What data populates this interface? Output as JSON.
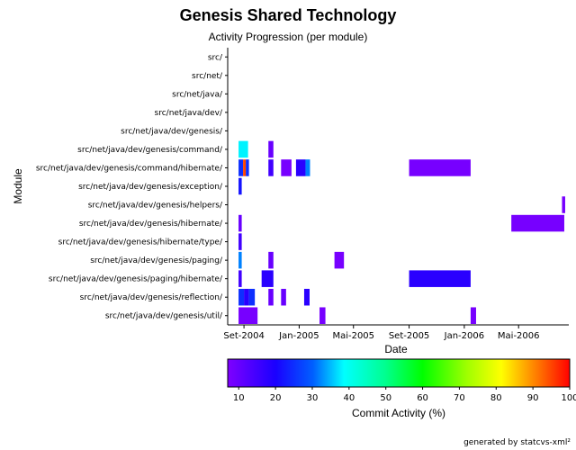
{
  "chart_data": {
    "type": "heatmap",
    "title": "Genesis Shared Technology",
    "subtitle": "Activity Progression (per module)",
    "xlabel": "Date",
    "ylabel": "Module",
    "x_ticks": [
      "Set-2004",
      "Jan-2005",
      "Mai-2005",
      "Set-2005",
      "Jan-2006",
      "Mai-2006"
    ],
    "x_range": [
      "2004-07-27",
      "2006-08-20"
    ],
    "modules": [
      "src/",
      "src/net/",
      "src/net/java/",
      "src/net/java/dev/",
      "src/net/java/dev/genesis/",
      "src/net/java/dev/genesis/command/",
      "src/net/java/dev/genesis/command/hibernate/",
      "src/net/java/dev/genesis/exception/",
      "src/net/java/dev/genesis/helpers/",
      "src/net/java/dev/genesis/hibernate/",
      "src/net/java/dev/genesis/hibernate/type/",
      "src/net/java/dev/genesis/paging/",
      "src/net/java/dev/genesis/paging/hibernate/",
      "src/net/java/dev/genesis/reflection/",
      "src/net/java/dev/genesis/util/"
    ],
    "cells": [
      {
        "module": 5,
        "start": "2004-08-20",
        "end": "2004-09-10",
        "activity": 38
      },
      {
        "module": 5,
        "start": "2004-10-25",
        "end": "2004-11-05",
        "activity": 10
      },
      {
        "module": 6,
        "start": "2004-08-20",
        "end": "2004-08-30",
        "activity": 25
      },
      {
        "module": 6,
        "start": "2004-08-30",
        "end": "2004-09-05",
        "activity": 95
      },
      {
        "module": 6,
        "start": "2004-09-05",
        "end": "2004-09-12",
        "activity": 25
      },
      {
        "module": 6,
        "start": "2004-10-25",
        "end": "2004-11-05",
        "activity": 15
      },
      {
        "module": 6,
        "start": "2004-11-22",
        "end": "2004-12-15",
        "activity": 8
      },
      {
        "module": 6,
        "start": "2004-12-25",
        "end": "2005-01-15",
        "activity": 18
      },
      {
        "module": 6,
        "start": "2005-01-15",
        "end": "2005-01-25",
        "activity": 32
      },
      {
        "module": 6,
        "start": "2005-09-01",
        "end": "2006-01-15",
        "activity": 8
      },
      {
        "module": 7,
        "start": "2004-08-20",
        "end": "2004-08-27",
        "activity": 22
      },
      {
        "module": 8,
        "start": "2006-08-05",
        "end": "2006-08-12",
        "activity": 8
      },
      {
        "module": 9,
        "start": "2004-08-20",
        "end": "2004-08-27",
        "activity": 10
      },
      {
        "module": 9,
        "start": "2006-04-15",
        "end": "2006-08-10",
        "activity": 8
      },
      {
        "module": 10,
        "start": "2004-08-20",
        "end": "2004-08-27",
        "activity": 15
      },
      {
        "module": 11,
        "start": "2004-08-20",
        "end": "2004-08-27",
        "activity": 32
      },
      {
        "module": 11,
        "start": "2004-10-25",
        "end": "2004-11-05",
        "activity": 10
      },
      {
        "module": 11,
        "start": "2005-03-20",
        "end": "2005-04-10",
        "activity": 8
      },
      {
        "module": 12,
        "start": "2004-08-20",
        "end": "2004-08-27",
        "activity": 15
      },
      {
        "module": 12,
        "start": "2004-10-10",
        "end": "2004-11-05",
        "activity": 18
      },
      {
        "module": 12,
        "start": "2005-09-01",
        "end": "2006-01-15",
        "activity": 18
      },
      {
        "module": 13,
        "start": "2004-08-20",
        "end": "2004-09-01",
        "activity": 25
      },
      {
        "module": 13,
        "start": "2004-09-01",
        "end": "2004-09-12",
        "activity": 18
      },
      {
        "module": 13,
        "start": "2004-09-12",
        "end": "2004-09-25",
        "activity": 25
      },
      {
        "module": 13,
        "start": "2004-10-25",
        "end": "2004-11-05",
        "activity": 10
      },
      {
        "module": 13,
        "start": "2004-11-22",
        "end": "2004-12-03",
        "activity": 10
      },
      {
        "module": 13,
        "start": "2005-01-12",
        "end": "2005-01-24",
        "activity": 18
      },
      {
        "module": 14,
        "start": "2004-08-20",
        "end": "2004-10-01",
        "activity": 8
      },
      {
        "module": 14,
        "start": "2005-02-15",
        "end": "2005-02-28",
        "activity": 8
      },
      {
        "module": 14,
        "start": "2006-01-15",
        "end": "2006-01-27",
        "activity": 8
      }
    ],
    "colorbar": {
      "label": "Commit Activity (%)",
      "range": [
        7,
        100
      ],
      "ticks": [
        "10",
        "20",
        "30",
        "40",
        "50",
        "60",
        "70",
        "80",
        "90",
        "100"
      ]
    },
    "footer": "generated by statcvs-xml²"
  }
}
